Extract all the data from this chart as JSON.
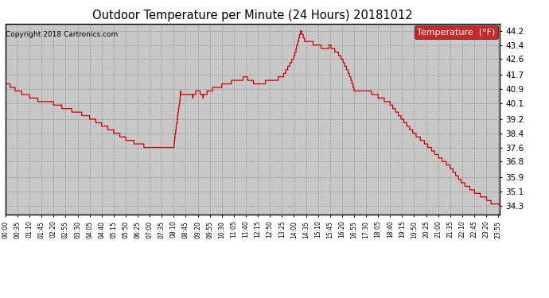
{
  "title": "Outdoor Temperature per Minute (24 Hours) 20181012",
  "copyright": "Copyright 2018 Cartronics.com",
  "legend_label": "Temperature  (°F)",
  "line_color": "#cc0000",
  "legend_bg": "#cc0000",
  "legend_text_color": "#ffffff",
  "background_color": "#ffffff",
  "plot_bg_color": "#c8c8c8",
  "grid_color": "#888888",
  "ylim": [
    33.8,
    44.6
  ],
  "yticks": [
    34.3,
    35.1,
    35.9,
    36.8,
    37.6,
    38.4,
    39.2,
    40.1,
    40.9,
    41.7,
    42.6,
    43.4,
    44.2
  ],
  "x_tick_labels": [
    "00:00",
    "00:35",
    "01:10",
    "01:45",
    "02:20",
    "02:55",
    "03:30",
    "04:05",
    "04:40",
    "05:15",
    "05:50",
    "06:25",
    "07:00",
    "07:35",
    "08:10",
    "08:45",
    "09:20",
    "09:55",
    "10:30",
    "11:05",
    "11:40",
    "12:15",
    "12:50",
    "13:25",
    "14:00",
    "14:35",
    "15:10",
    "15:45",
    "16:20",
    "16:55",
    "17:30",
    "18:05",
    "18:40",
    "19:15",
    "19:50",
    "20:25",
    "21:00",
    "21:35",
    "22:10",
    "22:45",
    "23:20",
    "23:55"
  ],
  "key_minutes": [
    0,
    35,
    70,
    105,
    140,
    175,
    210,
    245,
    280,
    315,
    350,
    385,
    420,
    455,
    490,
    510,
    525,
    545,
    560,
    575,
    595,
    630,
    665,
    700,
    735,
    770,
    805,
    840,
    860,
    875,
    895,
    910,
    930,
    945,
    970,
    980,
    1000,
    1015,
    1050,
    1085,
    1120,
    1155,
    1190,
    1225,
    1260,
    1295,
    1330,
    1365,
    1400,
    1420,
    1435
  ],
  "key_values": [
    41.3,
    40.8,
    40.5,
    40.2,
    40.1,
    39.8,
    39.6,
    39.3,
    38.9,
    38.5,
    38.1,
    37.8,
    37.6,
    37.6,
    37.7,
    40.7,
    40.6,
    40.5,
    40.85,
    40.5,
    40.85,
    41.1,
    41.35,
    41.55,
    41.15,
    41.4,
    41.55,
    42.7,
    44.2,
    43.5,
    43.5,
    43.45,
    43.1,
    43.35,
    42.9,
    42.6,
    41.8,
    40.9,
    40.85,
    40.5,
    40.1,
    39.2,
    38.4,
    37.8,
    37.1,
    36.5,
    35.6,
    35.1,
    34.7,
    34.4,
    34.3
  ]
}
